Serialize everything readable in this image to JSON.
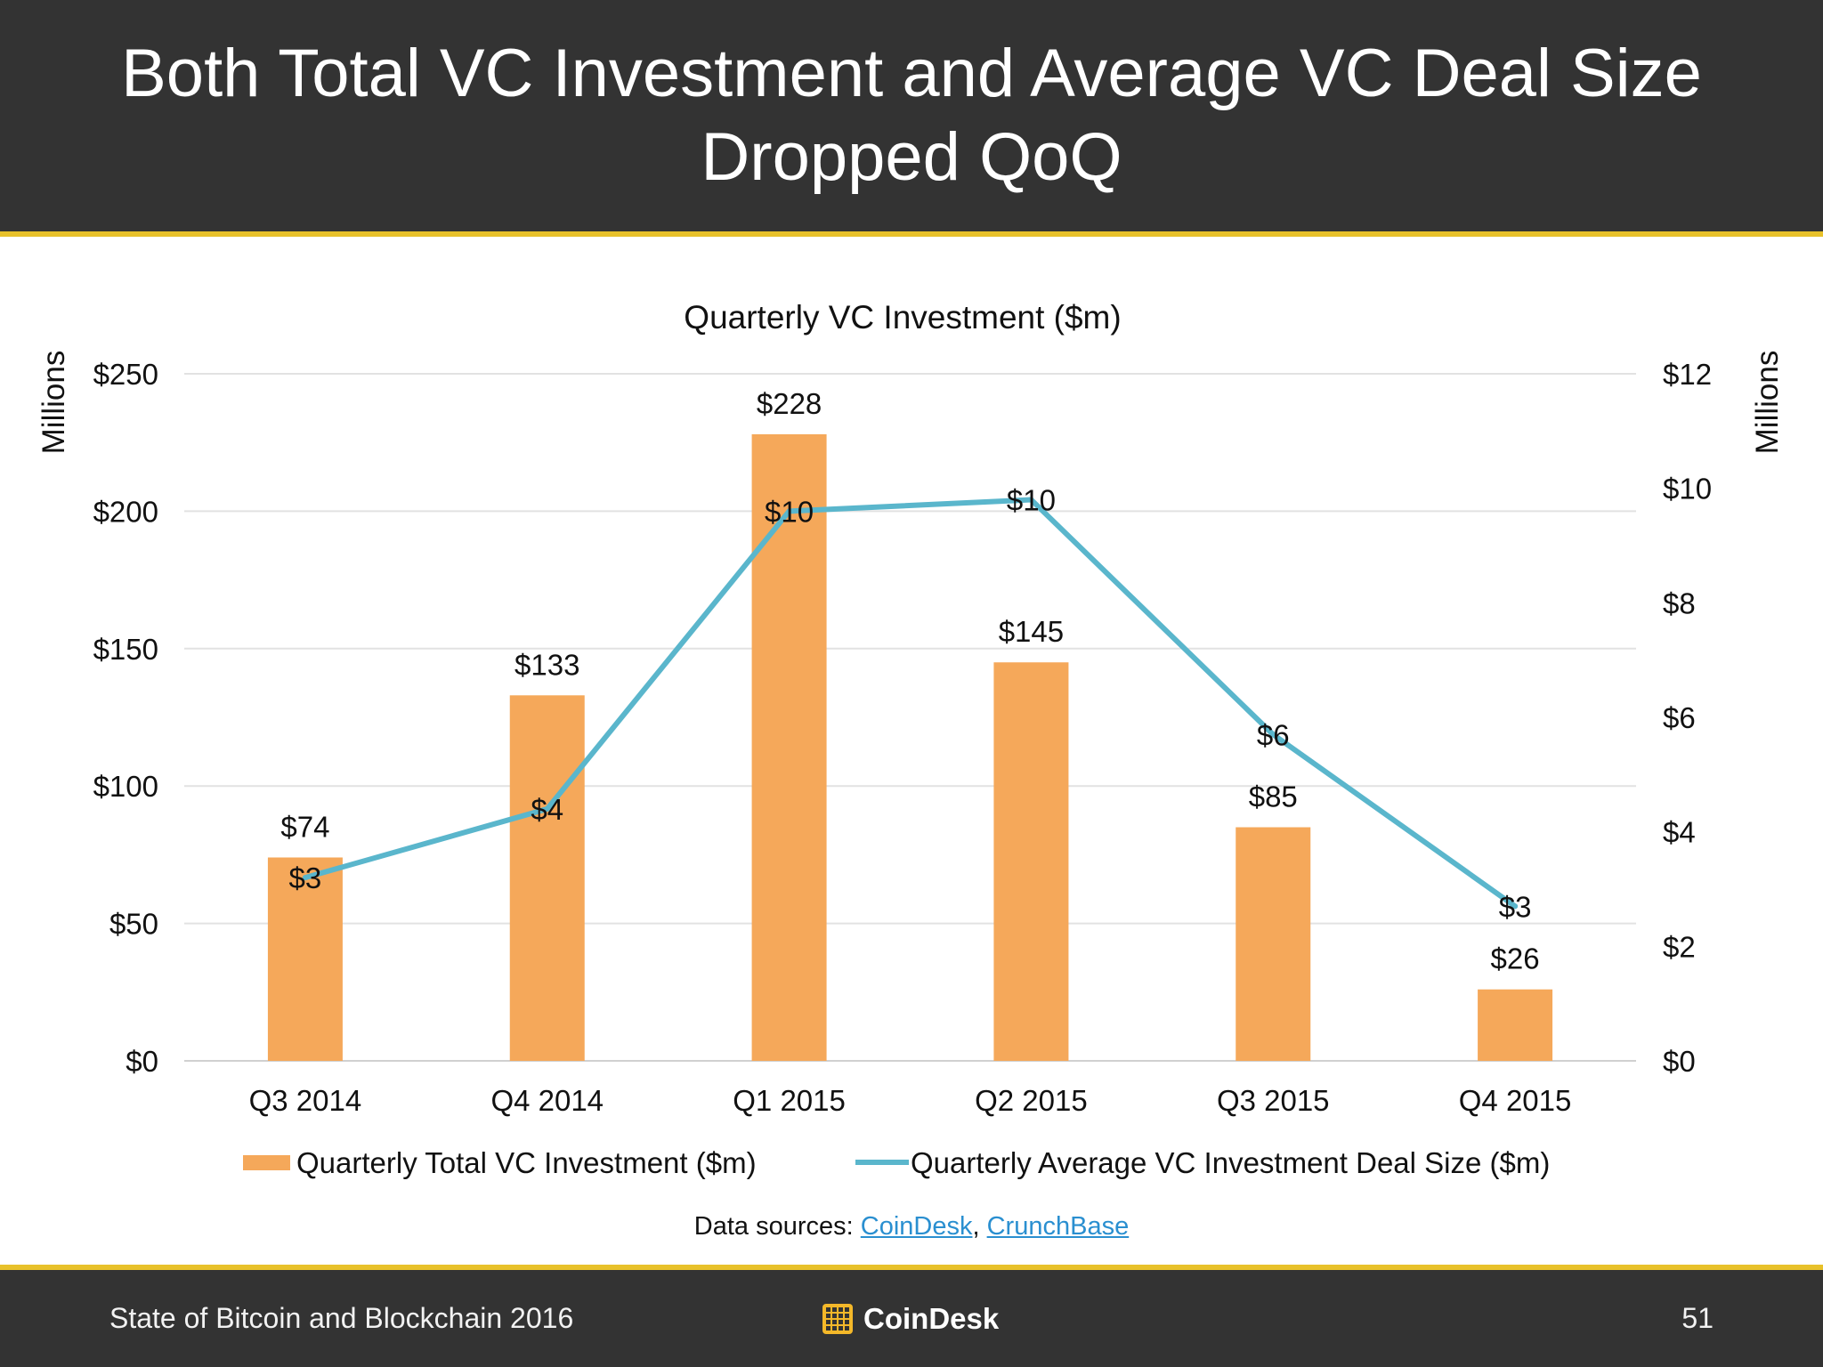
{
  "header": {
    "title": "Both Total VC Investment and Average VC Deal Size Dropped QoQ"
  },
  "chart_data": {
    "type": "bar",
    "title": "Quarterly VC Investment ($m)",
    "categories": [
      "Q3 2014",
      "Q4 2014",
      "Q1 2015",
      "Q2 2015",
      "Q3 2015",
      "Q4 2015"
    ],
    "ylabel": "Millions",
    "y2label": "Millions",
    "ylim": [
      0,
      250
    ],
    "y2lim": [
      0,
      12
    ],
    "yticks": [
      "$0",
      "$50",
      "$100",
      "$150",
      "$200",
      "$250"
    ],
    "y2ticks": [
      "$0",
      "$2",
      "$4",
      "$6",
      "$8",
      "$10",
      "$12"
    ],
    "grid": true,
    "legend_position": "bottom",
    "series": [
      {
        "name": "Quarterly Total VC Investment ($m)",
        "type": "bar",
        "axis": "left",
        "color": "#f5a85a",
        "values": [
          74,
          133,
          228,
          145,
          85,
          26
        ],
        "labels": [
          "$74",
          "$133",
          "$228",
          "$145",
          "$85",
          "$26"
        ]
      },
      {
        "name": "Quarterly Average VC Investment Deal Size ($m)",
        "type": "line",
        "axis": "right",
        "color": "#5ab6cc",
        "values": [
          3.2,
          4.4,
          9.6,
          9.8,
          5.7,
          2.7
        ],
        "labels": [
          "$3",
          "$4",
          "$10",
          "$10",
          "$6",
          "$3"
        ]
      }
    ]
  },
  "sources": {
    "prefix": "Data sources: ",
    "link1": "CoinDesk",
    "separator": ", ",
    "link2": "CrunchBase"
  },
  "footer": {
    "left_text": "State of Bitcoin and Blockchain 2016",
    "brand": "CoinDesk",
    "page_number": "51"
  }
}
